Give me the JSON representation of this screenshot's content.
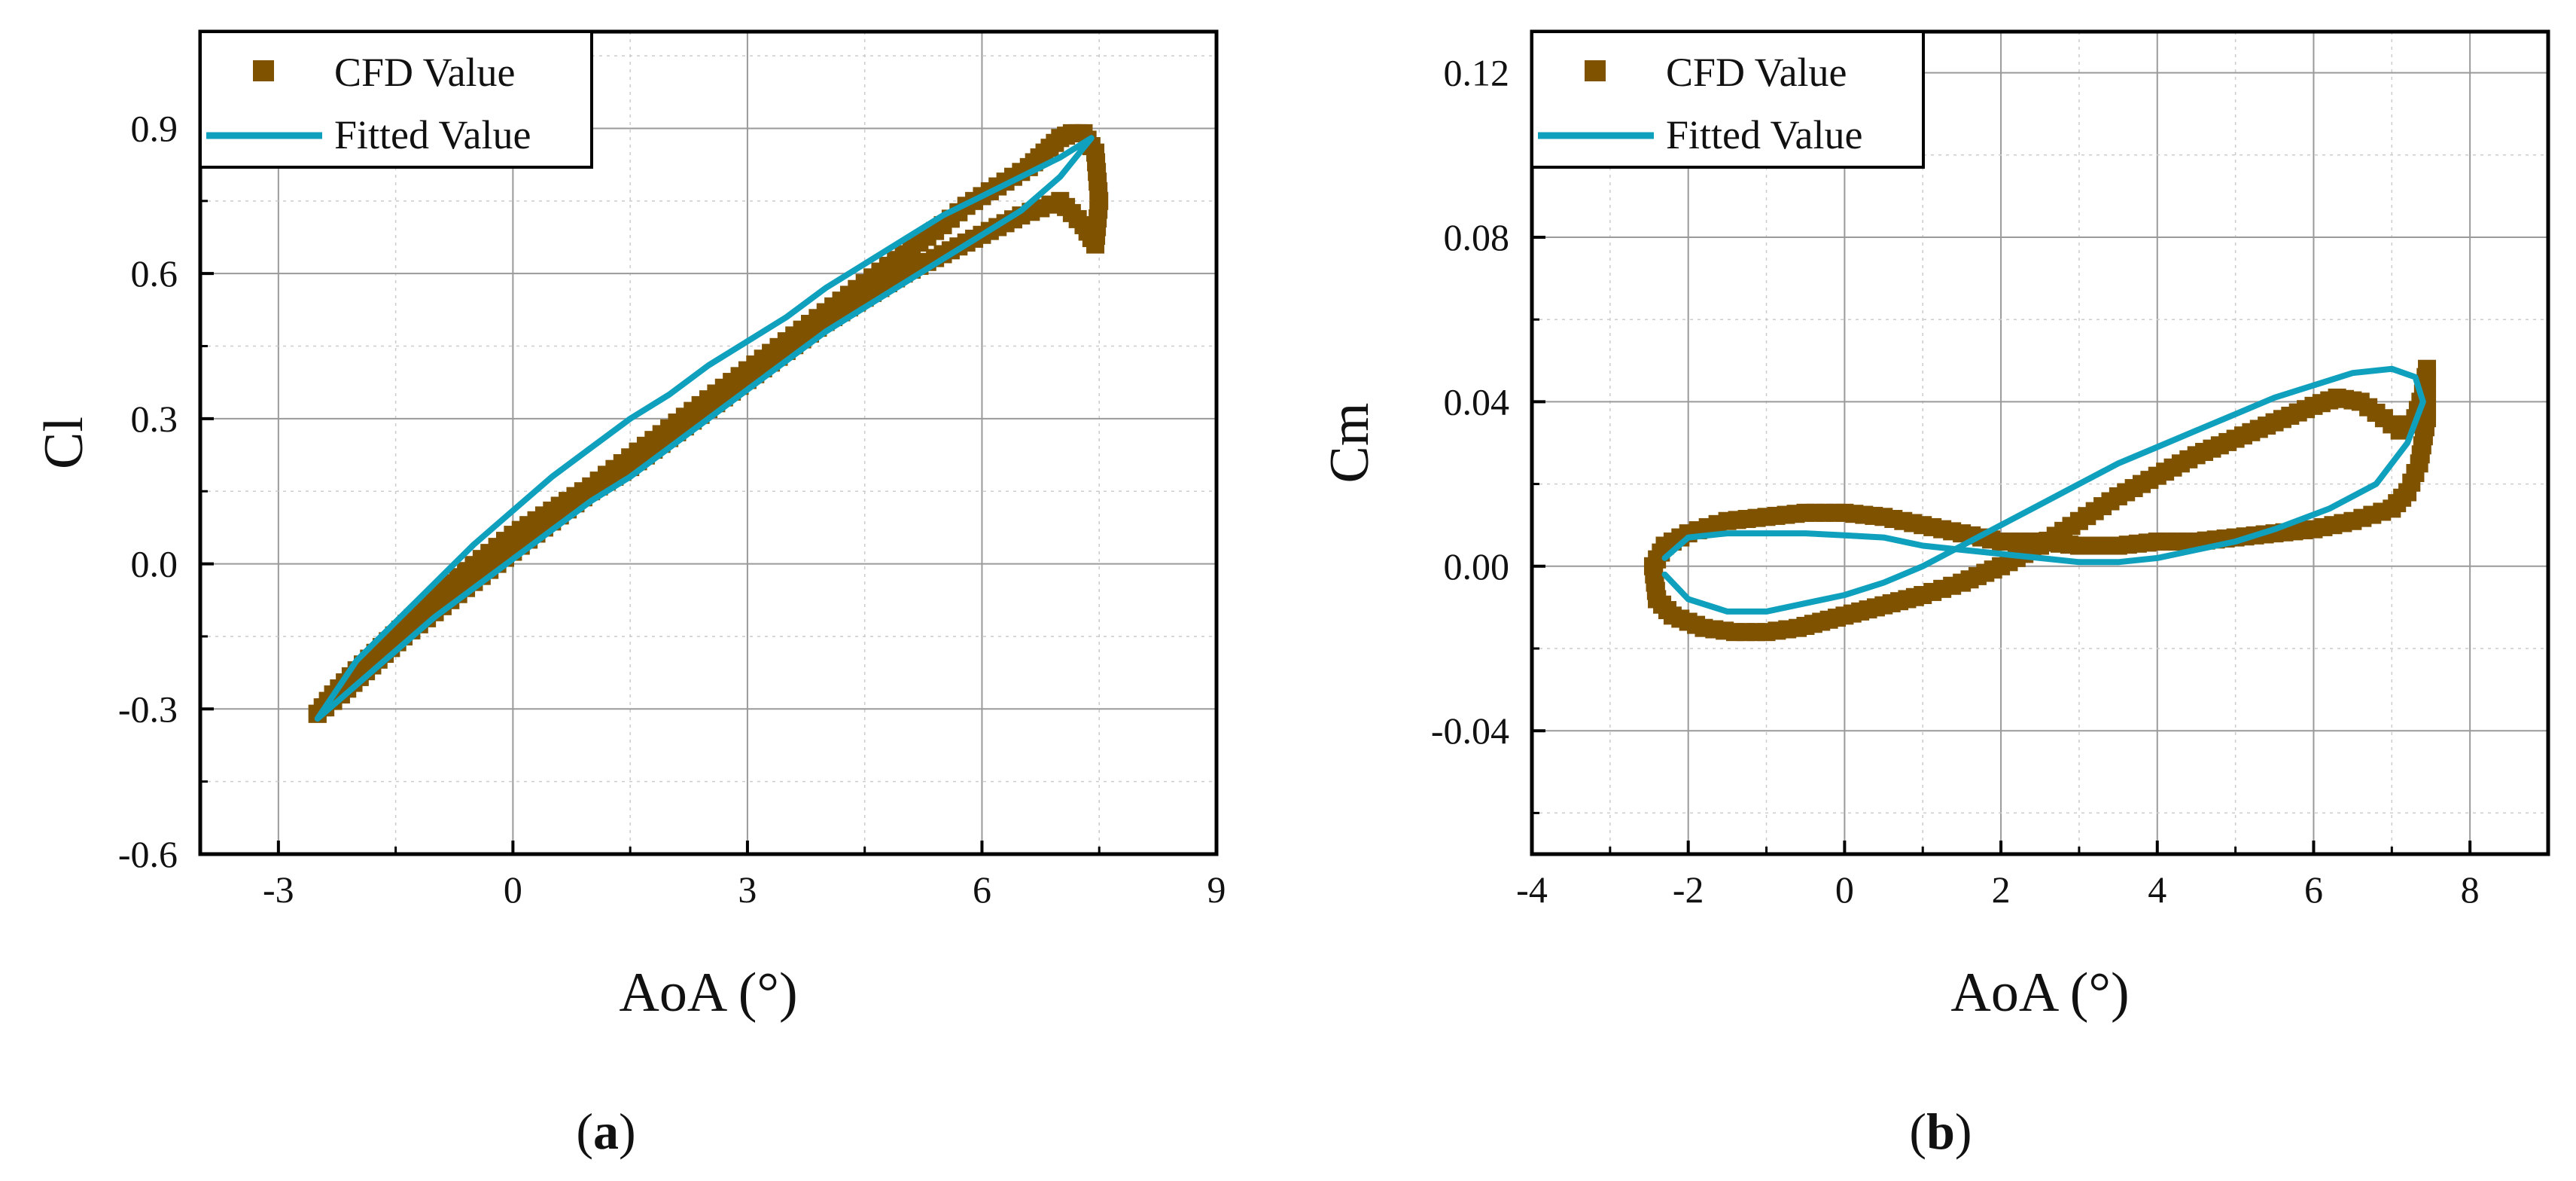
{
  "colors": {
    "cfd": "#7f5200",
    "fitted": "#0fa0bd",
    "grid": "#9a9a9a",
    "axis": "#000000"
  },
  "chart_data": [
    {
      "type": "scatter",
      "panel": "(a)",
      "panel_letter": "a",
      "xlabel": "AoA (°)",
      "ylabel": "Cl",
      "xlim": [
        -4,
        9
      ],
      "ylim": [
        -0.6,
        1.1
      ],
      "xticks": [
        -3,
        0,
        3,
        6,
        9
      ],
      "xtick_labels": [
        "-3",
        "0",
        "3",
        "6",
        "9"
      ],
      "yticks": [
        -0.6,
        -0.3,
        0.0,
        0.3,
        0.6,
        0.9
      ],
      "ytick_labels": [
        "-0.6",
        "-0.3",
        "0.0",
        "0.3",
        "0.6",
        "0.9"
      ],
      "grid": true,
      "legend": "top-left",
      "series": [
        {
          "name": "CFD Value",
          "kind": "markers",
          "x": [
            -2.5,
            -2.2,
            -1.8,
            -1.4,
            -1.0,
            -0.6,
            -0.2,
            0.2,
            0.6,
            1.0,
            1.5,
            2.0,
            2.5,
            3.0,
            3.5,
            4.0,
            4.5,
            5.0,
            5.5,
            6.0,
            6.5,
            7.0,
            7.3,
            7.45,
            7.5,
            7.45,
            7.3,
            7.15,
            7.0,
            6.8,
            6.6,
            6.4,
            6.1,
            5.8,
            5.5,
            5.0,
            4.5,
            4.0,
            3.5,
            3.0,
            2.5,
            2.0,
            1.5,
            1.0,
            0.5,
            0.0,
            -0.4,
            -0.8,
            -1.2,
            -1.6,
            -2.0,
            -2.3,
            -2.5
          ],
          "y": [
            -0.31,
            -0.27,
            -0.21,
            -0.15,
            -0.1,
            -0.05,
            0.0,
            0.05,
            0.1,
            0.15,
            0.2,
            0.26,
            0.32,
            0.38,
            0.44,
            0.5,
            0.55,
            0.6,
            0.64,
            0.68,
            0.72,
            0.75,
            0.7,
            0.66,
            0.75,
            0.85,
            0.89,
            0.89,
            0.88,
            0.85,
            0.82,
            0.8,
            0.77,
            0.74,
            0.7,
            0.64,
            0.58,
            0.52,
            0.46,
            0.4,
            0.34,
            0.28,
            0.22,
            0.16,
            0.11,
            0.06,
            0.01,
            -0.04,
            -0.1,
            -0.16,
            -0.22,
            -0.27,
            -0.31
          ]
        },
        {
          "name": "Fitted Value",
          "kind": "line",
          "x": [
            -2.5,
            -2.0,
            -1.5,
            -1.0,
            -0.5,
            0.0,
            0.5,
            1.0,
            1.5,
            2.0,
            2.5,
            3.0,
            3.5,
            4.0,
            4.5,
            5.0,
            5.5,
            6.0,
            6.5,
            7.0,
            7.4,
            7.0,
            6.5,
            6.0,
            5.5,
            5.0,
            4.5,
            4.0,
            3.5,
            3.0,
            2.5,
            2.0,
            1.5,
            1.0,
            0.5,
            0.0,
            -0.5,
            -1.0,
            -1.5,
            -2.0,
            -2.5
          ],
          "y": [
            -0.32,
            -0.25,
            -0.18,
            -0.11,
            -0.05,
            0.01,
            0.07,
            0.13,
            0.18,
            0.24,
            0.3,
            0.36,
            0.42,
            0.48,
            0.53,
            0.58,
            0.63,
            0.68,
            0.73,
            0.8,
            0.88,
            0.84,
            0.8,
            0.76,
            0.72,
            0.67,
            0.62,
            0.57,
            0.51,
            0.46,
            0.41,
            0.35,
            0.3,
            0.24,
            0.18,
            0.11,
            0.04,
            -0.04,
            -0.12,
            -0.2,
            -0.32
          ]
        }
      ]
    },
    {
      "type": "scatter",
      "panel": "(b)",
      "panel_letter": "b",
      "xlabel": "AoA (°)",
      "ylabel": "Cm",
      "xlim": [
        -4,
        9
      ],
      "ylim": [
        -0.07,
        0.13
      ],
      "xticks": [
        -4,
        -2,
        0,
        2,
        4,
        6,
        8
      ],
      "xtick_labels": [
        "-4",
        "-2",
        "0",
        "2",
        "4",
        "6",
        "8"
      ],
      "yticks": [
        -0.04,
        0.0,
        0.04,
        0.08,
        0.12
      ],
      "ytick_labels": [
        "-0.04",
        "0.00",
        "0.04",
        "0.08",
        "0.12"
      ],
      "grid": true,
      "legend": "top-left",
      "series": [
        {
          "name": "CFD Value",
          "kind": "markers",
          "x": [
            -2.4,
            -2.2,
            -1.8,
            -1.4,
            -1.0,
            -0.6,
            -0.2,
            0.2,
            0.6,
            1.0,
            1.5,
            2.0,
            2.5,
            3.0,
            3.5,
            4.0,
            4.5,
            5.0,
            5.5,
            6.0,
            6.3,
            6.6,
            6.9,
            7.1,
            7.3,
            7.4,
            7.45,
            7.45,
            7.35,
            7.2,
            7.0,
            6.5,
            6.0,
            5.5,
            5.0,
            4.5,
            4.0,
            3.5,
            3.0,
            2.5,
            2.0,
            1.5,
            1.0,
            0.5,
            0.0,
            -0.5,
            -1.0,
            -1.5,
            -2.0,
            -2.3,
            -2.45,
            -2.4
          ],
          "y": [
            -0.008,
            -0.012,
            -0.015,
            -0.016,
            -0.016,
            -0.015,
            -0.013,
            -0.011,
            -0.009,
            -0.007,
            -0.004,
            0.0,
            0.005,
            0.011,
            0.017,
            0.022,
            0.027,
            0.031,
            0.035,
            0.039,
            0.041,
            0.04,
            0.036,
            0.033,
            0.036,
            0.042,
            0.048,
            0.036,
            0.025,
            0.018,
            0.014,
            0.011,
            0.009,
            0.008,
            0.007,
            0.006,
            0.006,
            0.005,
            0.005,
            0.006,
            0.006,
            0.008,
            0.01,
            0.012,
            0.013,
            0.013,
            0.012,
            0.011,
            0.008,
            0.005,
            0.0,
            -0.008
          ]
        },
        {
          "name": "Fitted Value",
          "kind": "line",
          "x": [
            -2.3,
            -2.0,
            -1.5,
            -1.0,
            -0.5,
            0.0,
            0.5,
            1.0,
            1.5,
            2.0,
            2.5,
            3.0,
            3.5,
            4.0,
            4.5,
            5.0,
            5.5,
            6.0,
            6.5,
            7.0,
            7.3,
            7.4,
            7.2,
            6.8,
            6.2,
            5.5,
            5.0,
            4.5,
            4.0,
            3.5,
            3.0,
            2.5,
            2.0,
            1.5,
            1.0,
            0.5,
            0.0,
            -0.5,
            -1.0,
            -1.5,
            -2.0,
            -2.3
          ],
          "y": [
            -0.002,
            -0.008,
            -0.011,
            -0.011,
            -0.009,
            -0.007,
            -0.004,
            0.0,
            0.005,
            0.01,
            0.015,
            0.02,
            0.025,
            0.029,
            0.033,
            0.037,
            0.041,
            0.044,
            0.047,
            0.048,
            0.046,
            0.04,
            0.03,
            0.02,
            0.014,
            0.009,
            0.006,
            0.004,
            0.002,
            0.001,
            0.001,
            0.002,
            0.003,
            0.004,
            0.005,
            0.007,
            0.0075,
            0.008,
            0.008,
            0.008,
            0.007,
            0.002
          ]
        }
      ]
    }
  ]
}
